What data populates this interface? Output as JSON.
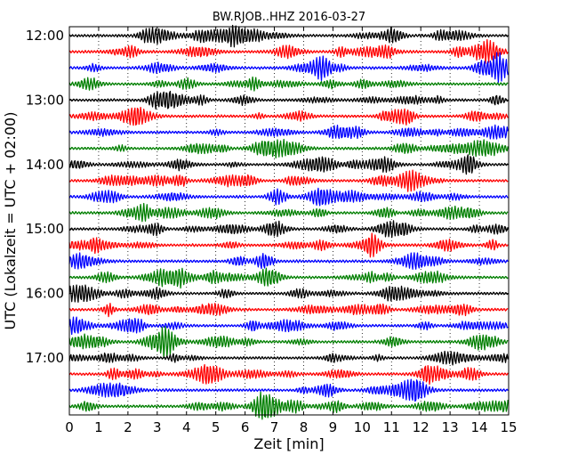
{
  "chart_data": {
    "type": "line",
    "title": "BW.RJOB..HHZ 2016-03-27",
    "xlabel": "Zeit  [min]",
    "ylabel": "UTC (Lokalzeit = UTC + 02:00)",
    "xlim": [
      0,
      15
    ],
    "x_ticks": [
      "0",
      "1",
      "2",
      "3",
      "4",
      "5",
      "6",
      "7",
      "8",
      "9",
      "10",
      "11",
      "12",
      "13",
      "14",
      "15"
    ],
    "y_tick_labels": [
      {
        "label": "12:00",
        "trace_index": 0
      },
      {
        "label": "13:00",
        "trace_index": 4
      },
      {
        "label": "14:00",
        "trace_index": 8
      },
      {
        "label": "15:00",
        "trace_index": 12
      },
      {
        "label": "16:00",
        "trace_index": 16
      },
      {
        "label": "17:00",
        "trace_index": 20
      }
    ],
    "trace_interval_minutes": 15,
    "trace_count": 24,
    "trace_colors": [
      "#000000",
      "#ff0000",
      "#0000ff",
      "#007f00"
    ],
    "grid": "vertical-dotted"
  }
}
